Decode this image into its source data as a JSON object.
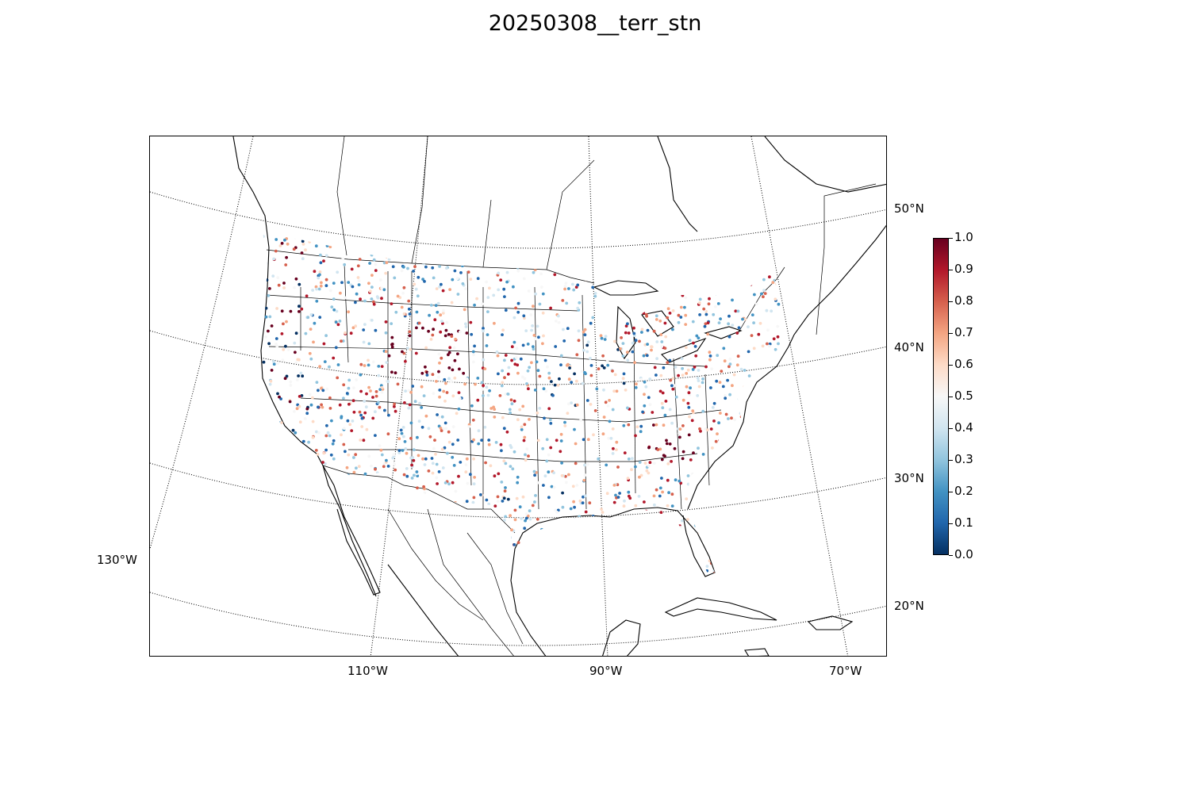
{
  "title": "20250308__terr_stn",
  "map": {
    "projection": "lambert-conformal",
    "lon_labels": [
      "130°W",
      "110°W",
      "90°W",
      "70°W"
    ],
    "lat_labels": [
      "50°N",
      "40°N",
      "30°N",
      "20°N"
    ]
  },
  "colorbar": {
    "colormap": "RdBu_r",
    "range": [
      0.0,
      1.0
    ],
    "tick_labels": [
      "0.0",
      "0.1",
      "0.2",
      "0.3",
      "0.4",
      "0.5",
      "0.6",
      "0.7",
      "0.8",
      "0.9",
      "1.0"
    ],
    "colors": [
      "#053061",
      "#2166ac",
      "#4393c3",
      "#92c5de",
      "#d1e5f0",
      "#f7f7f7",
      "#fddbc7",
      "#f4a582",
      "#d6604d",
      "#b2182b",
      "#67001f"
    ]
  }
}
